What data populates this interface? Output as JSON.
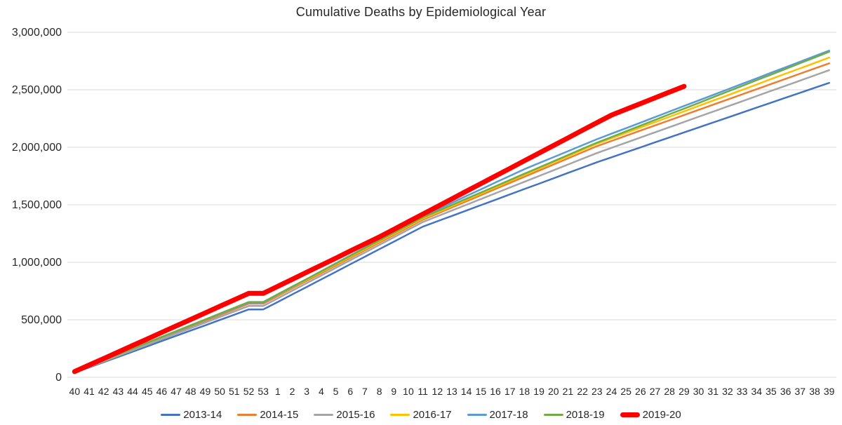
{
  "chart_data": {
    "type": "line",
    "title": "Cumulative Deaths by Epidemiological Year",
    "xlabel": "",
    "ylabel": "",
    "x_categories": [
      "40",
      "41",
      "42",
      "43",
      "44",
      "45",
      "46",
      "47",
      "48",
      "49",
      "50",
      "51",
      "52",
      "53",
      "1",
      "2",
      "3",
      "4",
      "5",
      "6",
      "7",
      "8",
      "9",
      "10",
      "11",
      "12",
      "13",
      "14",
      "15",
      "16",
      "17",
      "18",
      "19",
      "20",
      "21",
      "22",
      "23",
      "24",
      "25",
      "26",
      "27",
      "28",
      "29",
      "30",
      "31",
      "32",
      "33",
      "34",
      "35",
      "36",
      "37",
      "38",
      "39"
    ],
    "ylim": [
      0,
      3000000
    ],
    "y_ticks": [
      {
        "value": 0,
        "label": "0"
      },
      {
        "value": 500000,
        "label": "500,000"
      },
      {
        "value": 1000000,
        "label": "1,000,000"
      },
      {
        "value": 1500000,
        "label": "1,500,000"
      },
      {
        "value": 2000000,
        "label": "2,000,000"
      },
      {
        "value": 2500000,
        "label": "2,500,000"
      },
      {
        "value": 3000000,
        "label": "3,000,000"
      }
    ],
    "grid": "horizontal",
    "gridline_color": "#D9D9D9",
    "text_color": "#262626",
    "legend_position": "bottom",
    "series": [
      {
        "name": "2013-14",
        "color": "#4472C4",
        "line_width": 2.5,
        "values": [
          40000,
          86000,
          132000,
          177000,
          223000,
          269000,
          315000,
          361000,
          407000,
          452000,
          498000,
          544000,
          590000,
          590000,
          655000,
          721000,
          786000,
          852000,
          917000,
          983000,
          1048000,
          1114000,
          1179000,
          1245000,
          1310000,
          1357000,
          1403000,
          1450000,
          1497000,
          1543000,
          1590000,
          1637000,
          1683000,
          1730000,
          1777000,
          1823000,
          1870000,
          1913000,
          1956000,
          1999000,
          2043000,
          2086000,
          2129000,
          2172000,
          2215000,
          2258000,
          2301000,
          2345000,
          2388000,
          2431000,
          2474000,
          2517000,
          2560000
        ]
      },
      {
        "name": "2014-15",
        "color": "#ED7D31",
        "line_width": 2.5,
        "values": [
          45000,
          95000,
          144000,
          194000,
          243000,
          293000,
          342000,
          392000,
          442000,
          491000,
          541000,
          590000,
          640000,
          640000,
          706000,
          773000,
          839000,
          905000,
          972000,
          1038000,
          1104000,
          1171000,
          1237000,
          1304000,
          1370000,
          1423000,
          1477000,
          1530000,
          1583000,
          1637000,
          1690000,
          1743000,
          1797000,
          1850000,
          1903000,
          1957000,
          2010000,
          2055000,
          2100000,
          2145000,
          2190000,
          2235000,
          2280000,
          2325000,
          2370000,
          2415000,
          2460000,
          2505000,
          2550000,
          2595000,
          2640000,
          2685000,
          2730000
        ]
      },
      {
        "name": "2015-16",
        "color": "#A5A5A5",
        "line_width": 2.5,
        "values": [
          42000,
          90000,
          138000,
          187000,
          235000,
          283000,
          331000,
          379000,
          427000,
          475000,
          524000,
          572000,
          620000,
          620000,
          686000,
          753000,
          819000,
          885000,
          952000,
          1018000,
          1084000,
          1151000,
          1217000,
          1284000,
          1350000,
          1400000,
          1450000,
          1500000,
          1550000,
          1600000,
          1650000,
          1700000,
          1750000,
          1800000,
          1850000,
          1900000,
          1950000,
          1995000,
          2040000,
          2085000,
          2130000,
          2175000,
          2220000,
          2265000,
          2310000,
          2355000,
          2400000,
          2445000,
          2490000,
          2535000,
          2580000,
          2625000,
          2670000
        ]
      },
      {
        "name": "2016-17",
        "color": "#FFC000",
        "line_width": 2.5,
        "values": [
          45000,
          95000,
          146000,
          196000,
          247000,
          297000,
          347000,
          398000,
          448000,
          499000,
          549000,
          600000,
          650000,
          650000,
          716000,
          783000,
          849000,
          915000,
          982000,
          1048000,
          1114000,
          1181000,
          1247000,
          1314000,
          1380000,
          1434000,
          1488000,
          1543000,
          1597000,
          1651000,
          1705000,
          1760000,
          1814000,
          1868000,
          1922000,
          1977000,
          2031000,
          2078000,
          2125000,
          2172000,
          2218000,
          2265000,
          2312000,
          2359000,
          2406000,
          2452000,
          2499000,
          2546000,
          2593000,
          2640000,
          2686000,
          2733000,
          2780000
        ]
      },
      {
        "name": "2017-18",
        "color": "#5B9BD5",
        "line_width": 2.5,
        "values": [
          48000,
          98000,
          148000,
          198000,
          249000,
          299000,
          349000,
          399000,
          449000,
          500000,
          550000,
          600000,
          650000,
          650000,
          718000,
          786000,
          855000,
          923000,
          991000,
          1059000,
          1127000,
          1195000,
          1264000,
          1332000,
          1400000,
          1459000,
          1517000,
          1576000,
          1634000,
          1693000,
          1751000,
          1810000,
          1862000,
          1914000,
          1966000,
          2018000,
          2070000,
          2118000,
          2166000,
          2214000,
          2263000,
          2311000,
          2359000,
          2407000,
          2455000,
          2503000,
          2551000,
          2599000,
          2648000,
          2696000,
          2744000,
          2792000,
          2840000
        ]
      },
      {
        "name": "2018-19",
        "color": "#70AD47",
        "line_width": 2.5,
        "values": [
          48000,
          99000,
          149000,
          200000,
          250000,
          301000,
          352000,
          402000,
          453000,
          503000,
          554000,
          604000,
          655000,
          655000,
          722000,
          789000,
          855000,
          922000,
          989000,
          1056000,
          1123000,
          1190000,
          1256000,
          1323000,
          1390000,
          1444000,
          1498000,
          1553000,
          1607000,
          1661000,
          1715000,
          1770000,
          1824000,
          1878000,
          1932000,
          1987000,
          2040000,
          2089000,
          2139000,
          2188000,
          2237000,
          2287000,
          2336000,
          2385000,
          2435000,
          2484000,
          2533000,
          2583000,
          2632000,
          2681000,
          2731000,
          2780000,
          2830000
        ]
      },
      {
        "name": "2019-20",
        "color": "#FF0000",
        "line_width": 7,
        "values": [
          50000,
          107000,
          163000,
          220000,
          277000,
          333000,
          390000,
          447000,
          503000,
          560000,
          617000,
          673000,
          730000,
          730000,
          791000,
          852000,
          914000,
          975000,
          1036000,
          1098000,
          1159000,
          1220000,
          1286000,
          1353000,
          1419000,
          1485000,
          1551000,
          1618000,
          1684000,
          1750000,
          1816000,
          1883000,
          1949000,
          2015000,
          2081000,
          2148000,
          2214000,
          2280000,
          2330000,
          2380000,
          2430000,
          2480000,
          2530000
        ]
      }
    ]
  }
}
